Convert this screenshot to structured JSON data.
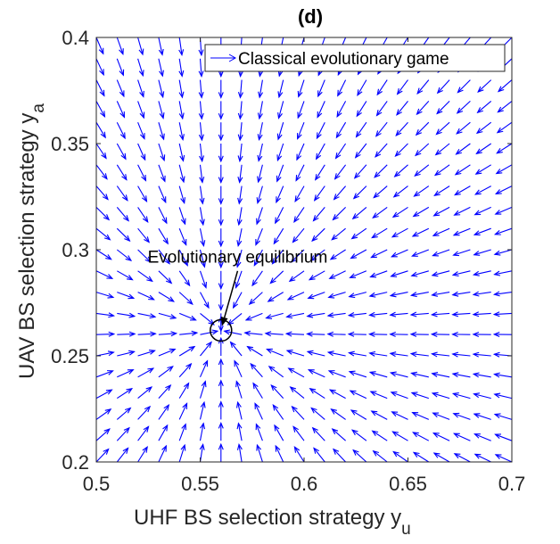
{
  "chart_data": {
    "type": "quiver",
    "title": "(d)",
    "xlabel": "UHF BS selection strategy y",
    "xlabel_sub": "u",
    "ylabel": "UAV BS selection strategy y",
    "ylabel_sub": "a",
    "xlim": [
      0.5,
      0.7
    ],
    "ylim": [
      0.2,
      0.4
    ],
    "xticks": [
      "0.5",
      "0.55",
      "0.6",
      "0.65",
      "0.7"
    ],
    "yticks": [
      "0.2",
      "0.25",
      "0.3",
      "0.35",
      "0.4"
    ],
    "grid": false,
    "box": true,
    "legend": {
      "position": "top-right",
      "entries": [
        "Classical evolutionary game"
      ]
    },
    "series": [
      {
        "name": "Classical evolutionary game",
        "color": "#0000ff",
        "field": {
          "x_start": 0.5,
          "x_step": 0.01,
          "x_count": 21,
          "y_start": 0.2,
          "y_step": 0.01,
          "y_count": 21,
          "equilibrium": [
            0.56,
            0.262
          ]
        }
      }
    ],
    "annotations": [
      {
        "text": "Evolutionary equilibrium",
        "text_at": [
          0.568,
          0.294
        ],
        "arrow_to": [
          0.5605,
          0.264
        ]
      }
    ],
    "marker": {
      "shape": "circle",
      "at": [
        0.56,
        0.262
      ]
    }
  }
}
